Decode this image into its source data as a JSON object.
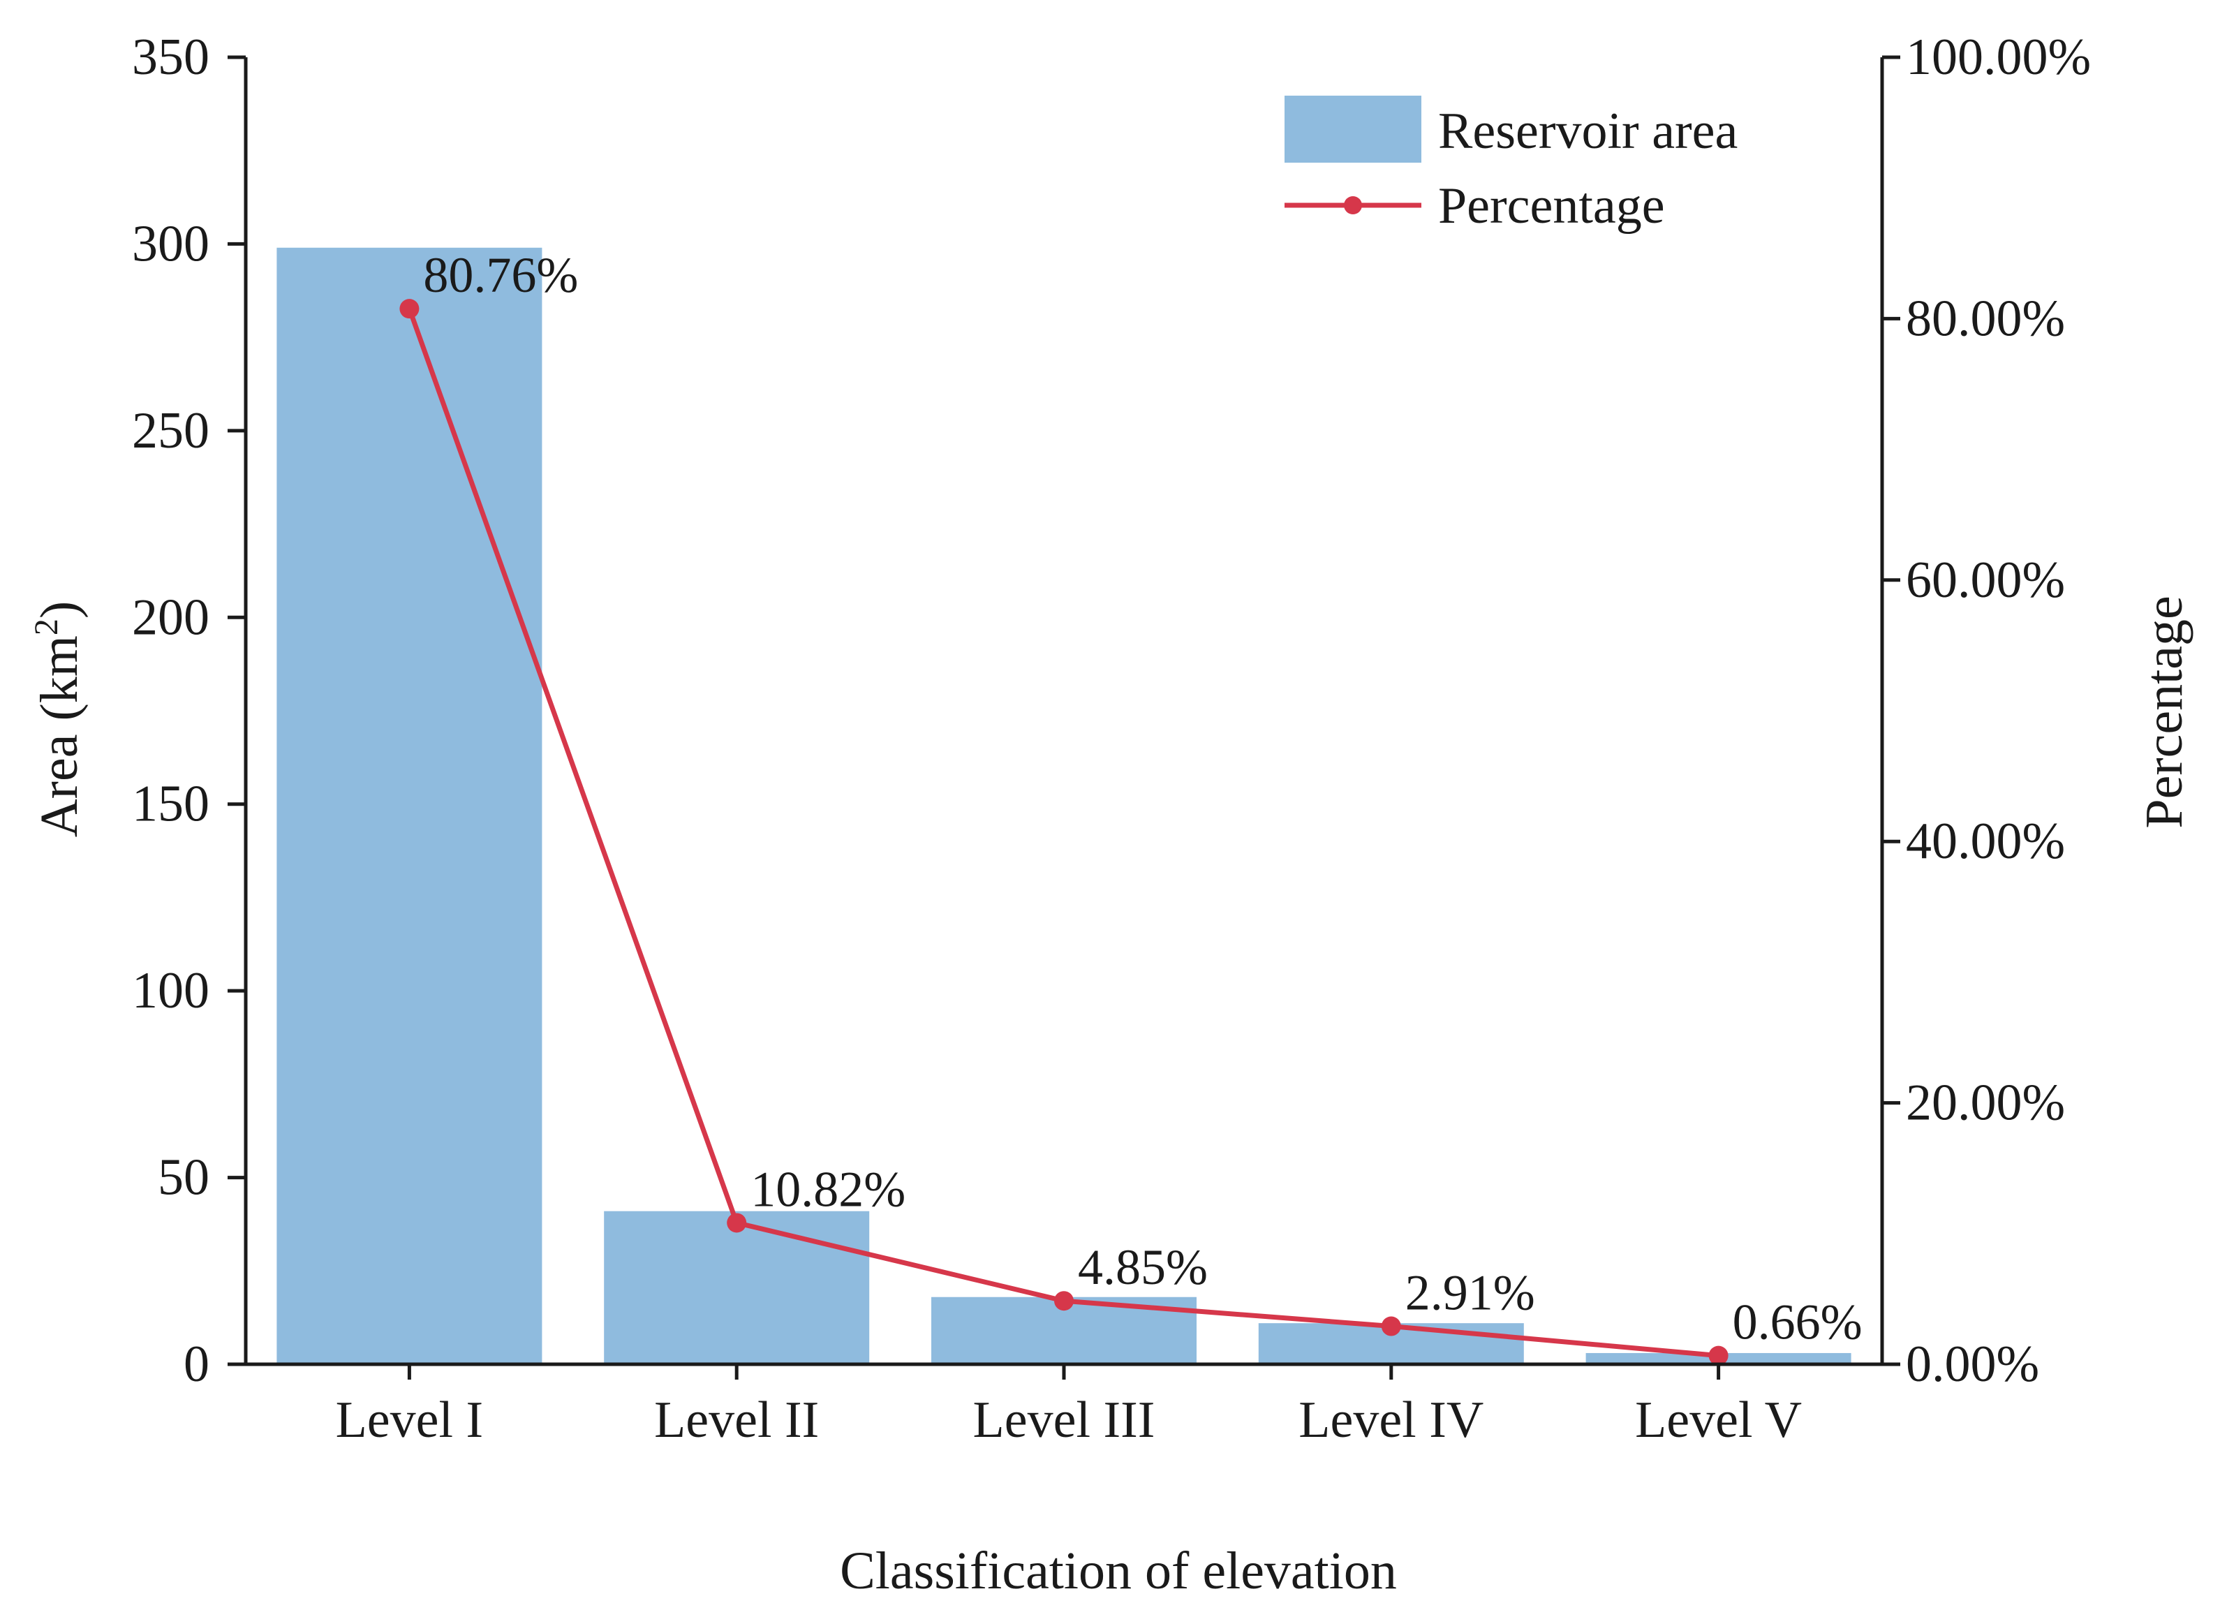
{
  "chart_data": {
    "type": "bar+line",
    "categories": [
      "Level I",
      "Level II",
      "Level III",
      "Level IV",
      "Level V"
    ],
    "series": [
      {
        "name": "Reservoir area",
        "type": "bar",
        "axis": "left",
        "values": [
          299,
          41,
          18,
          11,
          3
        ],
        "color": "#8fbbde"
      },
      {
        "name": "Percentage",
        "type": "line",
        "axis": "right",
        "values": [
          80.76,
          10.82,
          4.85,
          2.91,
          0.66
        ],
        "color": "#d6374a"
      }
    ],
    "data_labels": [
      "80.76%",
      "10.82%",
      "4.85%",
      "2.91%",
      "0.66%"
    ],
    "xlabel": "Classification of elevation",
    "ylabel_prefix": "Area (km",
    "ylabel_sup": "2",
    "ylabel_suffix": ")",
    "y2label": "Percentage",
    "ylim": [
      0,
      350
    ],
    "y_ticks": [
      0,
      50,
      100,
      150,
      200,
      250,
      300,
      350
    ],
    "y2lim": [
      0,
      100
    ],
    "y2_ticks": [
      0,
      20,
      40,
      60,
      80,
      100
    ],
    "y2_tick_labels": [
      "0.00%",
      "20.00%",
      "40.00%",
      "60.00%",
      "80.00%",
      "100.00%"
    ],
    "legend_position": "top-right",
    "grid": false
  }
}
